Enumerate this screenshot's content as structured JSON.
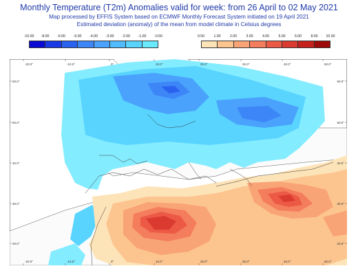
{
  "header": {
    "title": "Monthly Temperature (T2m) Anomalies valid for week: from 26 April to 02 May 2021",
    "line2": "Map processed by EFFIS System based on ECMWF Monthly Forecast System initiated on 19 April 2021",
    "line3": "Estimated deviation (anomaly) of the mean from model climate in Celsius degrees"
  },
  "legend_cold": {
    "labels": [
      "-10.00",
      "-8.00",
      "-6.00",
      "-5.00",
      "-4.00",
      "-3.00",
      "-2.00",
      "-1.00",
      "-0.50"
    ],
    "colors": [
      "#0a0ad2",
      "#1a3ae6",
      "#2a62f0",
      "#3d86f8",
      "#4aa2fc",
      "#50bcfe",
      "#58d4ff",
      "#6aeaff"
    ]
  },
  "legend_warm": {
    "labels": [
      "0.50",
      "1.00",
      "2.00",
      "3.00",
      "4.00",
      "5.00",
      "6.00",
      "8.00",
      "10.00"
    ],
    "colors": [
      "#fde3b8",
      "#fcc590",
      "#f9a477",
      "#f47d5e",
      "#ec5a46",
      "#db3a31",
      "#c4201c",
      "#9e0a0a"
    ]
  },
  "map": {
    "lon_labels": [
      "-20.0°",
      "-10.0°",
      "0°",
      "10.0°",
      "20.0°",
      "30.0°",
      "40.0°",
      "50.0°"
    ],
    "lat_labels": [
      "60.0°",
      "50.0°",
      "40.0°",
      "30.0°",
      "20.0°"
    ]
  }
}
